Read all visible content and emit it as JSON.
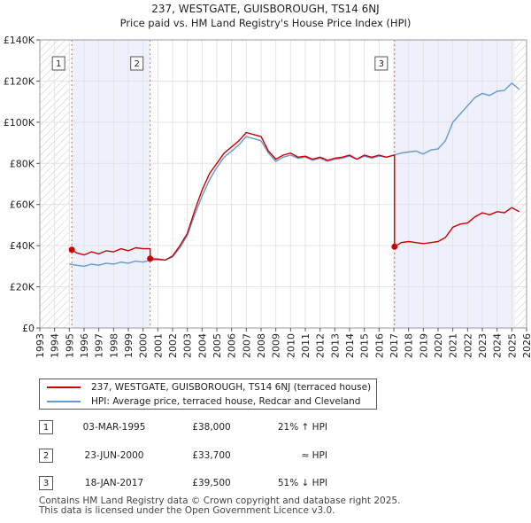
{
  "chart_data": {
    "type": "line",
    "title": "237, WESTGATE, GUISBOROUGH, TS14 6NJ",
    "subtitle": "Price paid vs. HM Land Registry's House Price Index (HPI)",
    "xlabel": "",
    "ylabel": "",
    "xlim": [
      1993,
      2026
    ],
    "ylim": [
      0,
      140000
    ],
    "yticks": [
      0,
      20000,
      40000,
      60000,
      80000,
      100000,
      120000,
      140000
    ],
    "ytick_labels": [
      "£0",
      "£20K",
      "£40K",
      "£60K",
      "£80K",
      "£100K",
      "£120K",
      "£140K"
    ],
    "xticks": [
      1993,
      1994,
      1995,
      1996,
      1997,
      1998,
      1999,
      2000,
      2001,
      2002,
      2003,
      2004,
      2005,
      2006,
      2007,
      2008,
      2009,
      2010,
      2011,
      2012,
      2013,
      2014,
      2015,
      2016,
      2017,
      2018,
      2019,
      2020,
      2021,
      2022,
      2023,
      2024,
      2025,
      2026
    ],
    "xtick_labels": [
      "1993",
      "1994",
      "1995",
      "1996",
      "1997",
      "1998",
      "1999",
      "2000",
      "2001",
      "2002",
      "2003",
      "2004",
      "2005",
      "2006",
      "2007",
      "2008",
      "2009",
      "2010",
      "2011",
      "2012",
      "2013",
      "2014",
      "2015",
      "2016",
      "2017",
      "2018",
      "2019",
      "2020",
      "2021",
      "2022",
      "2023",
      "2024",
      "2025",
      "2026"
    ],
    "hatched_regions": [
      [
        1993,
        1995.0
      ],
      [
        2025.2,
        2026
      ]
    ],
    "shaded_spans": [
      [
        1995.17,
        2000.48
      ],
      [
        2017.05,
        2025.2
      ]
    ],
    "series": [
      {
        "name": "237, WESTGATE, GUISBOROUGH, TS14 6NJ (terraced house)",
        "color": "#cc0000",
        "x": [
          1995.17,
          1995.5,
          1996.0,
          1996.5,
          1997.0,
          1997.5,
          1998.0,
          1998.5,
          1999.0,
          1999.5,
          2000.0,
          2000.48,
          2000.48,
          2001.0,
          2001.5,
          2002.0,
          2002.5,
          2003.0,
          2003.5,
          2004.0,
          2004.5,
          2005.0,
          2005.5,
          2006.0,
          2006.5,
          2007.0,
          2007.5,
          2008.0,
          2008.5,
          2009.0,
          2009.5,
          2010.0,
          2010.5,
          2011.0,
          2011.5,
          2012.0,
          2012.5,
          2013.0,
          2013.5,
          2014.0,
          2014.5,
          2015.0,
          2015.5,
          2016.0,
          2016.5,
          2017.0,
          2017.05,
          2017.05,
          2017.5,
          2018.0,
          2018.5,
          2019.0,
          2019.5,
          2020.0,
          2020.5,
          2021.0,
          2021.5,
          2022.0,
          2022.5,
          2023.0,
          2023.5,
          2024.0,
          2024.5,
          2025.0,
          2025.5
        ],
        "y": [
          38000,
          36500,
          35500,
          37000,
          36000,
          37500,
          37000,
          38500,
          37500,
          39000,
          38500,
          38500,
          33700,
          33500,
          33000,
          35000,
          40000,
          46000,
          57000,
          67000,
          75000,
          80000,
          85000,
          88000,
          91000,
          95000,
          94000,
          93000,
          86000,
          82000,
          84000,
          85000,
          83000,
          83500,
          82000,
          83000,
          81500,
          82500,
          83000,
          84000,
          82000,
          84000,
          83000,
          84000,
          83000,
          84000,
          84000,
          39500,
          41500,
          42000,
          41500,
          41000,
          41500,
          42000,
          44000,
          49000,
          50500,
          51000,
          54000,
          56000,
          55000,
          56500,
          56000,
          58500,
          56500
        ]
      },
      {
        "name": "HPI: Average price, terraced house, Redcar and Cleveland",
        "color": "#6699cc",
        "x": [
          1995.0,
          1995.5,
          1996.0,
          1996.5,
          1997.0,
          1997.5,
          1998.0,
          1998.5,
          1999.0,
          1999.5,
          2000.0,
          2000.5,
          2001.0,
          2001.5,
          2002.0,
          2002.5,
          2003.0,
          2003.5,
          2004.0,
          2004.5,
          2005.0,
          2005.5,
          2006.0,
          2006.5,
          2007.0,
          2007.5,
          2008.0,
          2008.5,
          2009.0,
          2009.5,
          2010.0,
          2010.5,
          2011.0,
          2011.5,
          2012.0,
          2012.5,
          2013.0,
          2013.5,
          2014.0,
          2014.5,
          2015.0,
          2015.5,
          2016.0,
          2016.5,
          2017.0,
          2017.5,
          2018.0,
          2018.5,
          2019.0,
          2019.5,
          2020.0,
          2020.5,
          2021.0,
          2021.5,
          2022.0,
          2022.5,
          2023.0,
          2023.5,
          2024.0,
          2024.5,
          2025.0,
          2025.5
        ],
        "y": [
          31000,
          30500,
          30000,
          31000,
          30500,
          31500,
          31000,
          32000,
          31500,
          32500,
          32000,
          33000,
          33200,
          33000,
          34500,
          39000,
          45000,
          55000,
          64000,
          72000,
          78000,
          83000,
          86000,
          89000,
          93000,
          92000,
          91000,
          85000,
          81000,
          83000,
          84000,
          82500,
          83000,
          81500,
          82500,
          81000,
          82000,
          82500,
          83500,
          82000,
          83500,
          82500,
          83500,
          83000,
          84000,
          85000,
          85500,
          86000,
          84500,
          86500,
          87000,
          91000,
          100000,
          104000,
          108000,
          112000,
          114000,
          113000,
          115000,
          115500,
          119000,
          116000
        ]
      }
    ],
    "sale_markers": [
      {
        "label": "1",
        "x": 1995.17,
        "y": 38000
      },
      {
        "label": "2",
        "x": 2000.48,
        "y": 33700
      },
      {
        "label": "3",
        "x": 2017.05,
        "y": 39500
      }
    ]
  },
  "legend": {
    "property_label": "237, WESTGATE, GUISBOROUGH, TS14 6NJ (terraced house)",
    "hpi_label": "HPI: Average price, terraced house, Redcar and Cleveland",
    "property_color": "#cc0000",
    "hpi_color": "#6699cc"
  },
  "sales": [
    {
      "num": "1",
      "date": "03-MAR-1995",
      "price": "£38,000",
      "hpi": "21% ↑ HPI"
    },
    {
      "num": "2",
      "date": "23-JUN-2000",
      "price": "£33,700",
      "hpi": "≈ HPI"
    },
    {
      "num": "3",
      "date": "18-JAN-2017",
      "price": "£39,500",
      "hpi": "51% ↓ HPI"
    }
  ],
  "footer": {
    "line1": "Contains HM Land Registry data © Crown copyright and database right 2025.",
    "line2": "This data is licensed under the Open Government Licence v3.0."
  }
}
